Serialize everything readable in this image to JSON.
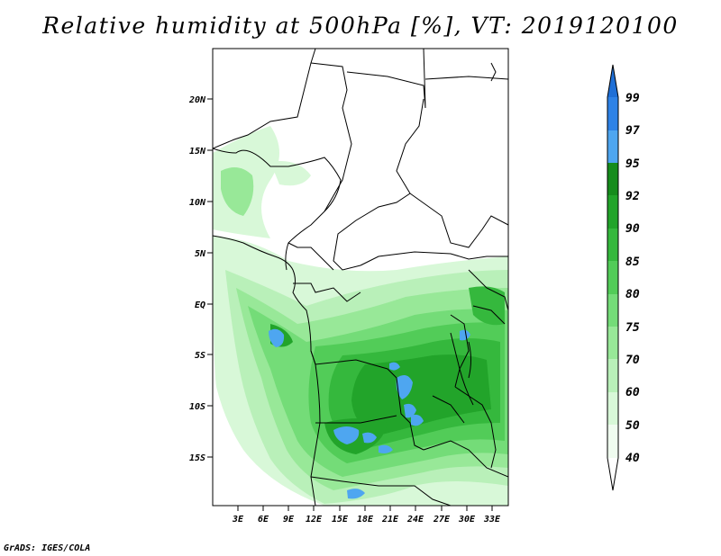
{
  "title": "Relative humidity at 500hPa [%], VT: 2019120100",
  "credit": "GrADS: IGES/COLA",
  "map": {
    "lat_labels": [
      "20N",
      "15N",
      "10N",
      "5N",
      "EQ",
      "5S",
      "10S",
      "15S"
    ],
    "lon_labels": [
      "3E",
      "6E",
      "9E",
      "12E",
      "15E",
      "18E",
      "21E",
      "24E",
      "27E",
      "30E",
      "33E"
    ]
  },
  "colorbar": {
    "levels": [
      "99",
      "97",
      "95",
      "92",
      "90",
      "85",
      "80",
      "75",
      "70",
      "60",
      "50",
      "40"
    ],
    "colors": [
      "#1f6fd6",
      "#2e82e6",
      "#4ea6f0",
      "#168c1c",
      "#22a42a",
      "#35b83d",
      "#52cc58",
      "#74dc78",
      "#98e898",
      "#b9f0b9",
      "#d8f8d8",
      "#f0fcf0",
      "#ffffff"
    ]
  }
}
